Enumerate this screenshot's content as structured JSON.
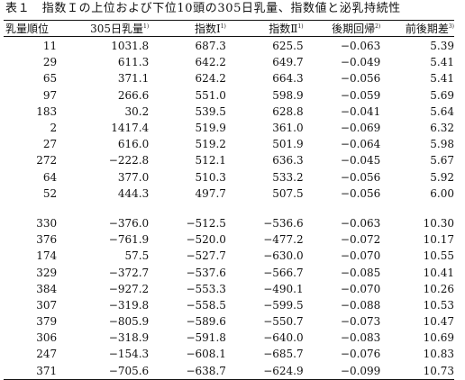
{
  "title": "表１　指数Ｉの上位および下位10頭の305日乳量、指数値と泌乳持続性",
  "headers": [
    {
      "label": "乳量順位",
      "note": ""
    },
    {
      "label": "305日乳量",
      "note": "1)"
    },
    {
      "label": "指数Ⅰ",
      "note": "1)"
    },
    {
      "label": "指数Ⅱ",
      "note": "1)"
    },
    {
      "label": "後期回帰",
      "note": "2)"
    },
    {
      "label": "前後期差",
      "note": "3)"
    }
  ],
  "top_rows": [
    [
      "11",
      "1031.8",
      "687.3",
      "625.5",
      "−0.063",
      "5.39"
    ],
    [
      "29",
      "611.3",
      "642.2",
      "649.7",
      "−0.049",
      "5.41"
    ],
    [
      "65",
      "371.1",
      "624.2",
      "664.3",
      "−0.056",
      "5.41"
    ],
    [
      "97",
      "266.6",
      "551.0",
      "598.9",
      "−0.059",
      "5.69"
    ],
    [
      "183",
      "30.2",
      "539.5",
      "628.8",
      "−0.041",
      "5.64"
    ],
    [
      "2",
      "1417.4",
      "519.9",
      "361.0",
      "−0.069",
      "6.32"
    ],
    [
      "27",
      "616.0",
      "519.2",
      "501.9",
      "−0.064",
      "5.98"
    ],
    [
      "272",
      "−222.8",
      "512.1",
      "636.3",
      "−0.045",
      "5.67"
    ],
    [
      "64",
      "377.0",
      "510.3",
      "533.2",
      "−0.056",
      "5.92"
    ],
    [
      "52",
      "444.3",
      "497.7",
      "507.5",
      "−0.056",
      "6.00"
    ]
  ],
  "bottom_rows": [
    [
      "330",
      "−376.0",
      "−512.5",
      "−536.6",
      "−0.063",
      "10.30"
    ],
    [
      "376",
      "−761.9",
      "−520.0",
      "−477.2",
      "−0.072",
      "10.17"
    ],
    [
      "174",
      "57.5",
      "−527.7",
      "−630.0",
      "−0.070",
      "10.55"
    ],
    [
      "329",
      "−372.7",
      "−537.6",
      "−566.7",
      "−0.085",
      "10.41"
    ],
    [
      "384",
      "−927.2",
      "−553.3",
      "−490.1",
      "−0.070",
      "10.26"
    ],
    [
      "307",
      "−319.8",
      "−558.5",
      "−599.5",
      "−0.088",
      "10.53"
    ],
    [
      "379",
      "−805.9",
      "−589.6",
      "−550.7",
      "−0.073",
      "10.47"
    ],
    [
      "306",
      "−318.9",
      "−591.8",
      "−640.0",
      "−0.083",
      "10.69"
    ],
    [
      "247",
      "−154.3",
      "−608.1",
      "−685.7",
      "−0.076",
      "10.83"
    ],
    [
      "371",
      "−705.6",
      "−638.7",
      "−624.9",
      "−0.099",
      "10.73"
    ]
  ]
}
